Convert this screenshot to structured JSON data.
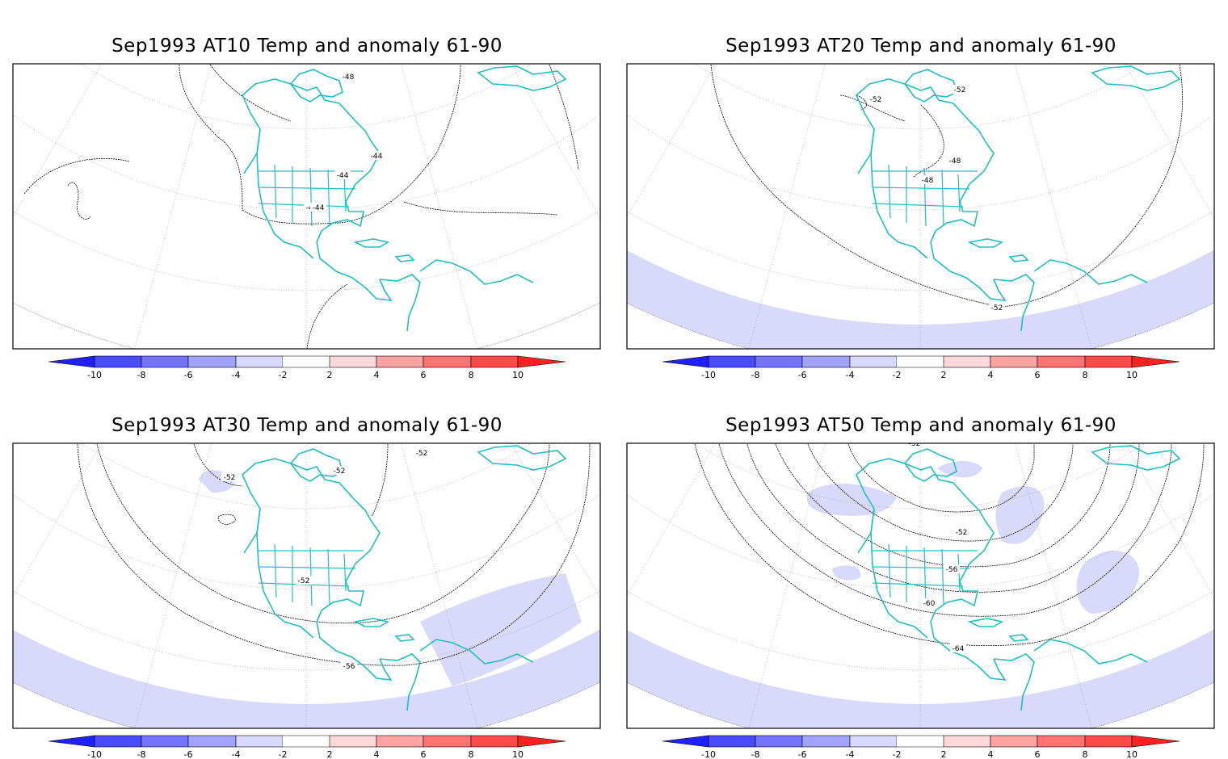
{
  "panels": [
    {
      "title": "Sep1993 AT10 Temp and anomaly 61-90",
      "contour_labels": [
        "-48",
        "-44",
        "-44",
        "-44",
        "-44"
      ]
    },
    {
      "title": "Sep1993 AT20 Temp and anomaly 61-90",
      "contour_labels": [
        "-52",
        "-52",
        "-48",
        "-48",
        "-52"
      ]
    },
    {
      "title": "Sep1993 AT30 Temp and anomaly 61-90",
      "contour_labels": [
        "-52",
        "-52",
        "-52",
        "-52",
        "-56"
      ]
    },
    {
      "title": "Sep1993 AT50 Temp and anomaly 61-90",
      "contour_labels": [
        "-52",
        "-52",
        "-56",
        "-60",
        "-64"
      ]
    }
  ],
  "colorbar": {
    "tick_labels": [
      "-10",
      "-8",
      "-6",
      "-4",
      "-2",
      "2",
      "4",
      "6",
      "8",
      "10"
    ],
    "colors": [
      "#2020ff",
      "#4a4aff",
      "#7373ff",
      "#a3a3ff",
      "#d9d9ff",
      "#ffffff",
      "#ffd9d9",
      "#ffa3a3",
      "#ff7373",
      "#ff4a4a",
      "#ff2020"
    ]
  },
  "style": {
    "coast_color": "#20c0c0",
    "contour_color": "#000000",
    "anomaly_fill": "#d9d9fb"
  }
}
